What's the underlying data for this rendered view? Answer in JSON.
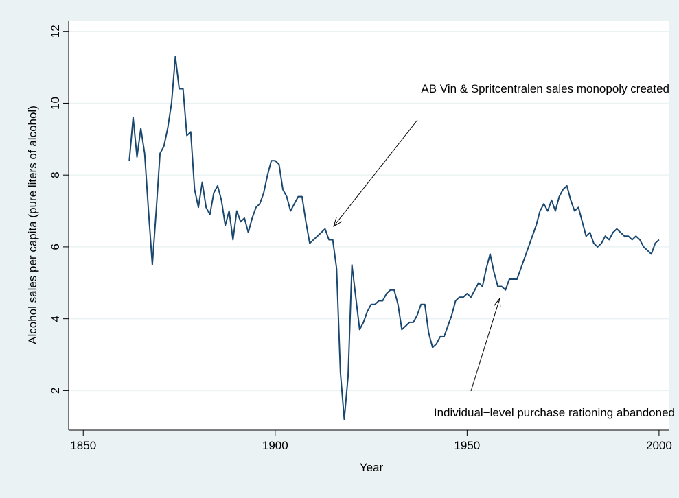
{
  "chart_data": {
    "type": "line",
    "x": [
      1862,
      1863,
      1864,
      1865,
      1866,
      1867,
      1868,
      1869,
      1870,
      1871,
      1872,
      1873,
      1874,
      1875,
      1876,
      1877,
      1878,
      1879,
      1880,
      1881,
      1882,
      1883,
      1884,
      1885,
      1886,
      1887,
      1888,
      1889,
      1890,
      1891,
      1892,
      1893,
      1894,
      1895,
      1896,
      1897,
      1898,
      1899,
      1900,
      1901,
      1902,
      1903,
      1904,
      1905,
      1906,
      1907,
      1908,
      1909,
      1910,
      1911,
      1912,
      1913,
      1914,
      1915,
      1916,
      1917,
      1918,
      1919,
      1920,
      1921,
      1922,
      1923,
      1924,
      1925,
      1926,
      1927,
      1928,
      1929,
      1930,
      1931,
      1932,
      1933,
      1934,
      1935,
      1936,
      1937,
      1938,
      1939,
      1940,
      1941,
      1942,
      1943,
      1944,
      1945,
      1946,
      1947,
      1948,
      1949,
      1950,
      1951,
      1952,
      1953,
      1954,
      1955,
      1956,
      1957,
      1958,
      1959,
      1960,
      1961,
      1962,
      1963,
      1964,
      1965,
      1966,
      1967,
      1968,
      1969,
      1970,
      1971,
      1972,
      1973,
      1974,
      1975,
      1976,
      1977,
      1978,
      1979,
      1980,
      1981,
      1982,
      1983,
      1984,
      1985,
      1986,
      1987,
      1988,
      1989,
      1990,
      1991,
      1992,
      1993,
      1994,
      1995,
      1996,
      1997,
      1998,
      1999,
      2000
    ],
    "values": [
      8.4,
      9.6,
      8.5,
      9.3,
      8.6,
      7.0,
      5.5,
      7.0,
      8.6,
      8.8,
      9.3,
      10.0,
      11.3,
      10.4,
      10.4,
      9.1,
      9.2,
      7.6,
      7.1,
      7.8,
      7.1,
      6.9,
      7.5,
      7.7,
      7.3,
      6.6,
      7.0,
      6.2,
      7.0,
      6.7,
      6.8,
      6.4,
      6.8,
      7.1,
      7.2,
      7.5,
      8.0,
      8.4,
      8.4,
      8.3,
      7.6,
      7.4,
      7.0,
      7.2,
      7.4,
      7.4,
      6.7,
      6.1,
      6.2,
      6.3,
      6.4,
      6.5,
      6.2,
      6.2,
      5.4,
      2.5,
      1.2,
      2.4,
      5.5,
      4.6,
      3.7,
      3.9,
      4.2,
      4.4,
      4.4,
      4.5,
      4.5,
      4.7,
      4.8,
      4.8,
      4.4,
      3.7,
      3.8,
      3.9,
      3.9,
      4.1,
      4.4,
      4.4,
      3.6,
      3.2,
      3.3,
      3.5,
      3.5,
      3.8,
      4.1,
      4.5,
      4.6,
      4.6,
      4.7,
      4.6,
      4.8,
      5.0,
      4.9,
      5.4,
      5.8,
      5.3,
      4.9,
      4.9,
      4.8,
      5.1,
      5.1,
      5.1,
      5.4,
      5.7,
      6.0,
      6.3,
      6.6,
      7.0,
      7.2,
      7.0,
      7.3,
      7.0,
      7.4,
      7.6,
      7.7,
      7.3,
      7.0,
      7.1,
      6.7,
      6.3,
      6.4,
      6.1,
      6.0,
      6.1,
      6.3,
      6.2,
      6.4,
      6.5,
      6.4,
      6.3,
      6.3,
      6.2,
      6.3,
      6.2,
      6.0,
      5.9,
      5.8,
      6.1,
      6.2
    ],
    "color": "#1a476f",
    "x_label": "Year",
    "y_label": "Alcohol sales per capita (pure liters of alcohol)",
    "xlim": [
      1846.2,
      2002.7
    ],
    "xticks": [
      1850,
      1900,
      1950,
      2000
    ],
    "ylim": [
      0.9,
      12.3
    ],
    "yticks": [
      2,
      4,
      6,
      8,
      10,
      12
    ],
    "grid": true,
    "annotations": [
      "AB Vin & Spritcentralen sales monopoly created",
      "Individual−level purchase rationing abandoned"
    ]
  }
}
